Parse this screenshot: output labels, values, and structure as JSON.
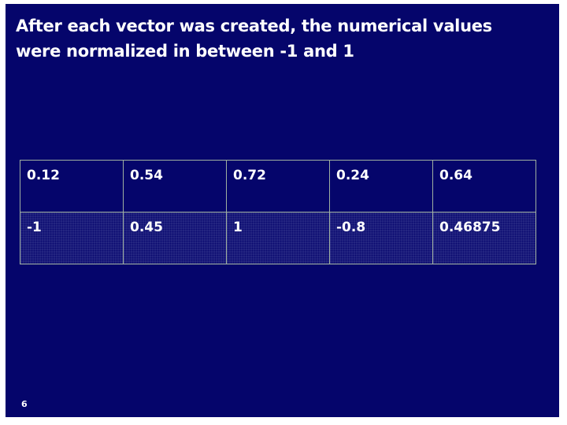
{
  "slide": {
    "title": [
      "After each vector was created, the numerical values",
      "were normalized in between -1 and 1"
    ],
    "table": {
      "rows": [
        [
          "0.12",
          "0.54",
          "0.72",
          "0.24",
          "0.64"
        ],
        [
          "-1",
          "0.45",
          "1",
          "-0.8",
          "0.46875"
        ]
      ]
    },
    "page_number": "6"
  }
}
